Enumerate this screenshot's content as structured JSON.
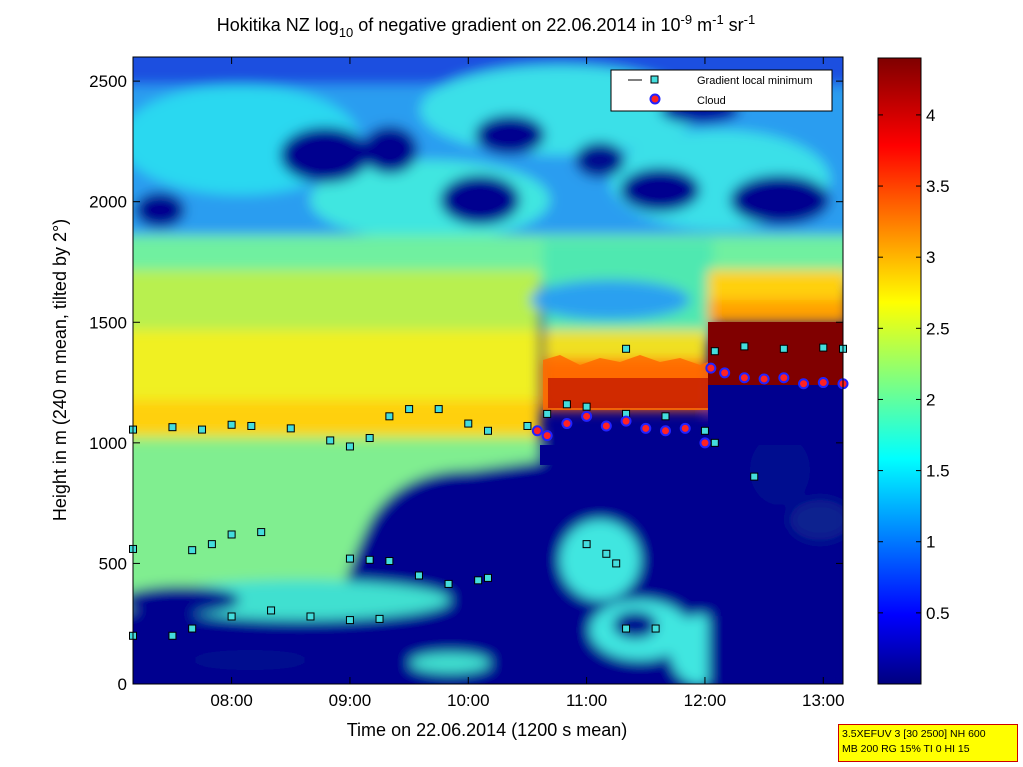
{
  "chart_data": {
    "type": "heatmap",
    "title": {
      "prefix": "Hokitika NZ log",
      "log_sub": "10",
      "middle": " of negative gradient on 22.06.2014 in 10",
      "exp1": "-9",
      "unit1": " m",
      "exp2": "-1",
      "unit2": " sr",
      "exp3": "-1"
    },
    "xlabel": "Time on 22.06.2014 (1200 s mean)",
    "ylabel": "Height in m (240 m mean, tilted by 2°)",
    "xlim": [
      "07:10",
      "13:10"
    ],
    "ylim": [
      0,
      2600
    ],
    "x_ticks": [
      "08:00",
      "09:00",
      "10:00",
      "11:00",
      "12:00",
      "13:00"
    ],
    "y_ticks": [
      0,
      500,
      1000,
      1500,
      2000,
      2500
    ],
    "colorbar": {
      "range": [
        0,
        4.4
      ],
      "ticks": [
        "0.5",
        "1",
        "1.5",
        "2",
        "2.5",
        "3",
        "3.5",
        "4"
      ]
    },
    "legend": {
      "placement": "top-right",
      "entries": [
        {
          "label": "Gradient local minimum",
          "marker": "square",
          "color": "#44dddd"
        },
        {
          "label": "Cloud",
          "marker": "circle",
          "color": "#ff2222"
        }
      ]
    },
    "series": [
      {
        "name": "Gradient local minimum",
        "points": [
          [
            "07:10",
            1055
          ],
          [
            "07:30",
            1065
          ],
          [
            "07:45",
            1055
          ],
          [
            "08:00",
            1075
          ],
          [
            "08:10",
            1070
          ],
          [
            "08:30",
            1060
          ],
          [
            "08:50",
            1010
          ],
          [
            "09:00",
            985
          ],
          [
            "09:10",
            1020
          ],
          [
            "09:20",
            1110
          ],
          [
            "09:30",
            1140
          ],
          [
            "09:45",
            1140
          ],
          [
            "10:00",
            1080
          ],
          [
            "10:10",
            1050
          ],
          [
            "10:30",
            1070
          ],
          [
            "10:40",
            1120
          ],
          [
            "10:50",
            1160
          ],
          [
            "11:00",
            1150
          ],
          [
            "11:20",
            1120
          ],
          [
            "11:40",
            1110
          ],
          [
            "12:00",
            1050
          ],
          [
            "12:05",
            1000
          ],
          [
            "12:05",
            1380
          ],
          [
            "12:20",
            1400
          ],
          [
            "12:40",
            1390
          ],
          [
            "13:00",
            1395
          ],
          [
            "13:10",
            1390
          ],
          [
            "07:10",
            560
          ],
          [
            "07:40",
            555
          ],
          [
            "07:50",
            580
          ],
          [
            "08:00",
            620
          ],
          [
            "08:15",
            630
          ],
          [
            "07:10",
            200
          ],
          [
            "07:30",
            200
          ],
          [
            "07:40",
            230
          ],
          [
            "08:00",
            280
          ],
          [
            "08:20",
            305
          ],
          [
            "08:40",
            280
          ],
          [
            "09:00",
            265
          ],
          [
            "09:15",
            270
          ],
          [
            "09:00",
            520
          ],
          [
            "09:10",
            515
          ],
          [
            "09:20",
            510
          ],
          [
            "09:35",
            450
          ],
          [
            "09:50",
            415
          ],
          [
            "10:05",
            430
          ],
          [
            "10:10",
            440
          ],
          [
            "11:00",
            580
          ],
          [
            "11:10",
            540
          ],
          [
            "11:15",
            500
          ],
          [
            "11:20",
            230
          ],
          [
            "11:35",
            230
          ],
          [
            "12:25",
            860
          ],
          [
            "11:20",
            1390
          ]
        ]
      },
      {
        "name": "Cloud",
        "points": [
          [
            "10:35",
            1050
          ],
          [
            "10:40",
            1030
          ],
          [
            "10:50",
            1080
          ],
          [
            "11:00",
            1110
          ],
          [
            "11:10",
            1070
          ],
          [
            "11:20",
            1090
          ],
          [
            "11:30",
            1060
          ],
          [
            "11:40",
            1050
          ],
          [
            "11:50",
            1060
          ],
          [
            "12:00",
            1000
          ],
          [
            "12:03",
            1310
          ],
          [
            "12:10",
            1290
          ],
          [
            "12:20",
            1270
          ],
          [
            "12:30",
            1265
          ],
          [
            "12:40",
            1270
          ],
          [
            "12:50",
            1245
          ],
          [
            "13:00",
            1250
          ],
          [
            "13:10",
            1245
          ]
        ]
      }
    ]
  },
  "info_box": {
    "line1": "3.5XEFUV 3 [30 2500] NH 600",
    "line2": "MB 200 RG 15% TI 0 HI 15"
  }
}
